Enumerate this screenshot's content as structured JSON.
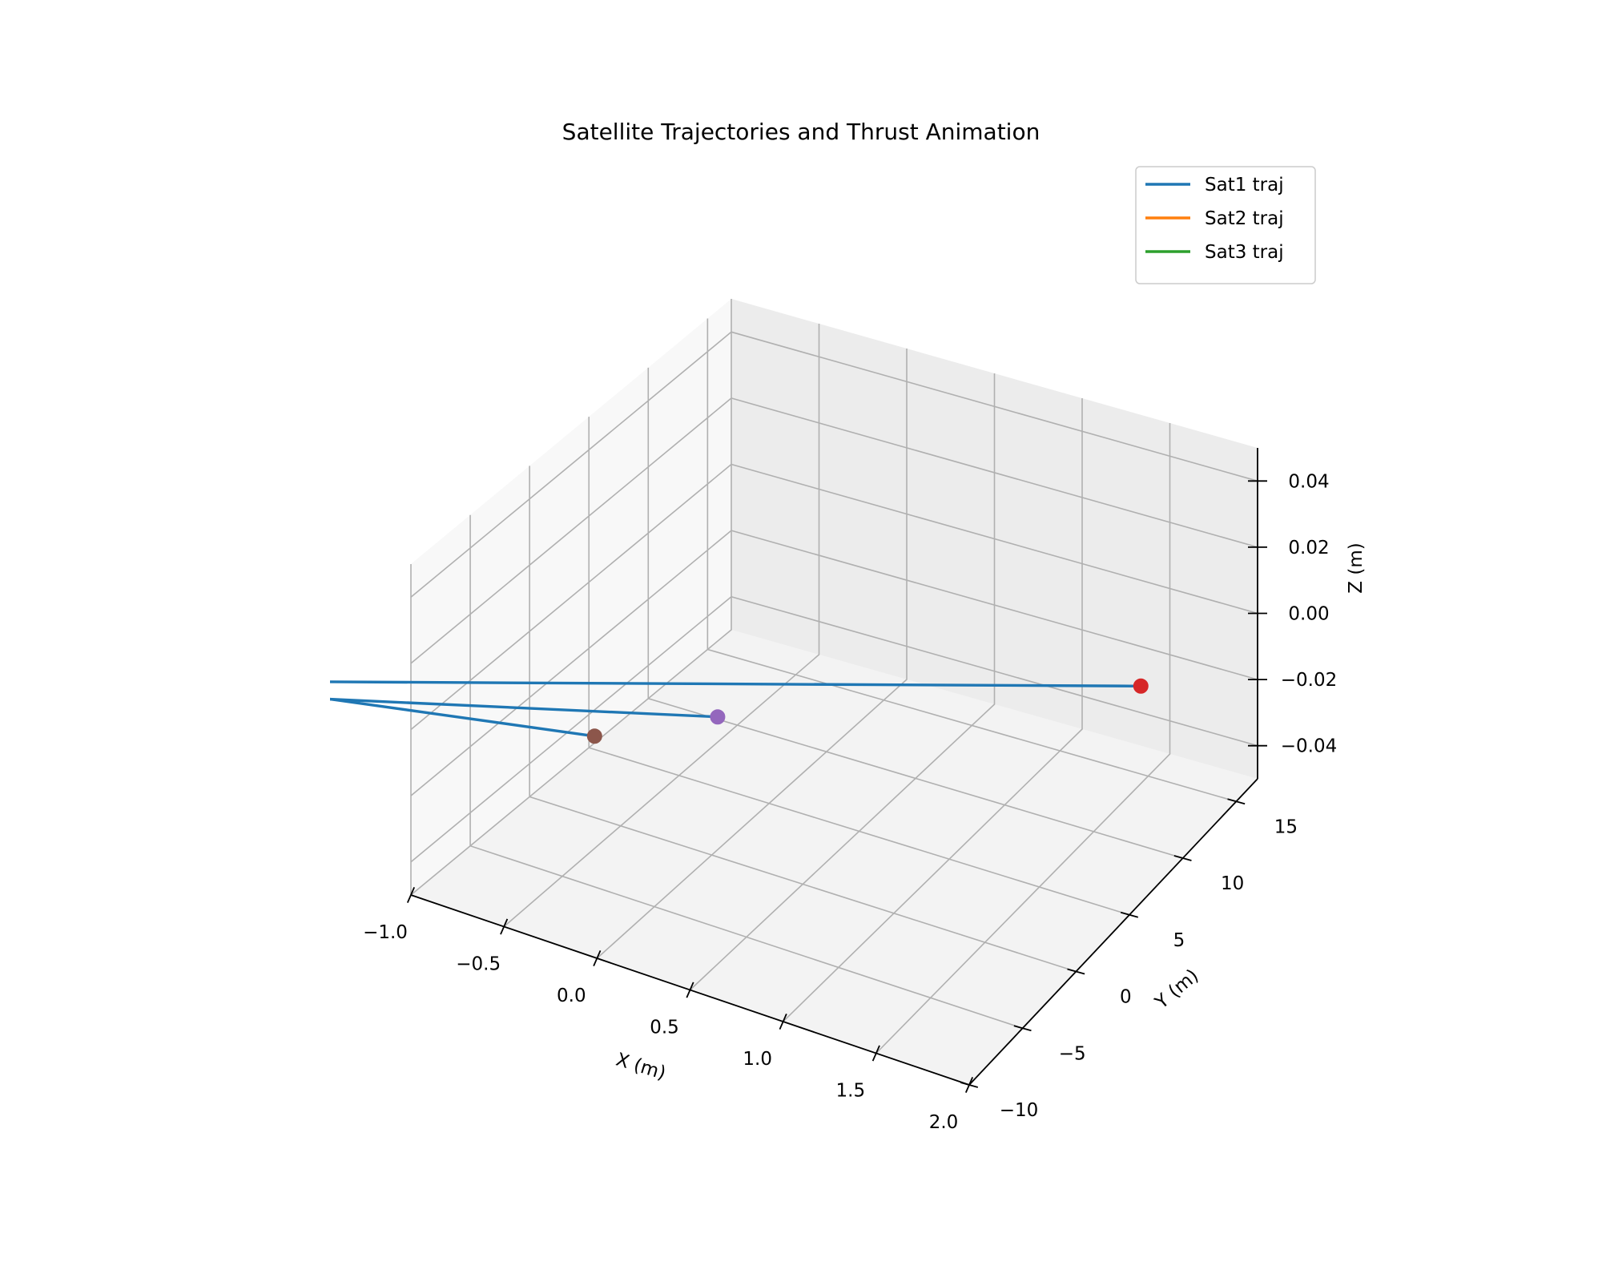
{
  "chart_data": {
    "type": "line",
    "projection": "3d",
    "title": "Satellite Trajectories and Thrust Animation",
    "xlabel": "X (m)",
    "ylabel": "Y (m)",
    "zlabel": "Z (m)",
    "xlim": [
      -1.0,
      2.0
    ],
    "ylim": [
      -10,
      17
    ],
    "zlim": [
      -0.05,
      0.05
    ],
    "x_ticks": [
      "−1.0",
      "−0.5",
      "0.0",
      "0.5",
      "1.0",
      "1.5",
      "2.0"
    ],
    "y_ticks": [
      "−10",
      "−5",
      "0",
      "5",
      "10",
      "15"
    ],
    "z_ticks": [
      "−0.04",
      "−0.02",
      "0.00",
      "0.02",
      "0.04"
    ],
    "grid": true,
    "legend_position": "top-right",
    "series": [
      {
        "name": "Sat1 traj",
        "color": "#1f77b4",
        "x": [
          -2.3,
          0.11
        ],
        "y": [
          -14.3,
          -1.56
        ],
        "z": [
          0,
          0
        ]
      },
      {
        "name": "Sat2 traj",
        "color": "#ff7f0e",
        "x": [],
        "y": [],
        "z": []
      },
      {
        "name": "Sat3 traj",
        "color": "#2ca02c",
        "x": [],
        "y": [],
        "z": []
      }
    ],
    "extra_lines": [
      {
        "color": "#1f77b4",
        "x": [
          -2.02,
          -0.27
        ],
        "y": [
          -11.65,
          -5.97
        ],
        "z": [
          0,
          0
        ]
      },
      {
        "color": "#1f77b4",
        "x": [
          -2.02,
          1.58
        ],
        "y": [
          -11.65,
          11.05
        ],
        "z": [
          0,
          0
        ]
      }
    ],
    "markers": [
      {
        "color": "#9467bd",
        "x": 0.11,
        "y": -1.56,
        "z": 0
      },
      {
        "color": "#8c564b",
        "x": -0.27,
        "y": -5.97,
        "z": 0
      },
      {
        "color": "#d62728",
        "x": 1.58,
        "y": 11.05,
        "z": 0
      }
    ]
  }
}
